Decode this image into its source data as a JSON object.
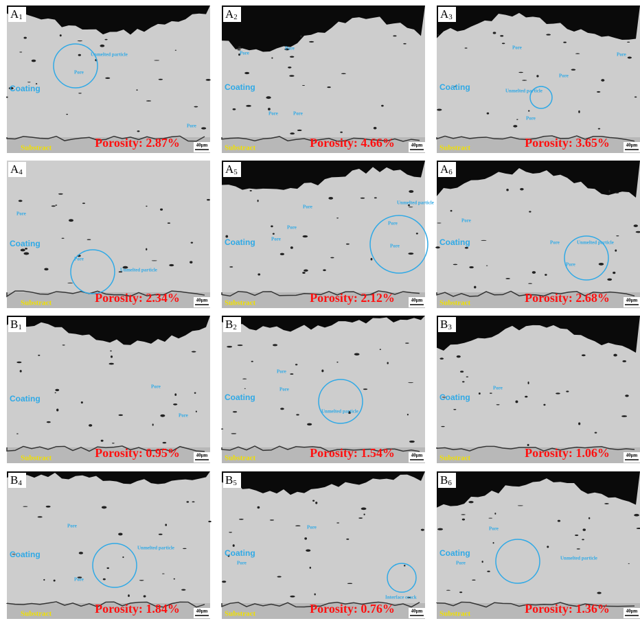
{
  "panels": [
    {
      "label": "A",
      "index": "1",
      "coating": "Coating",
      "substrate": "Substract",
      "porosity": "Porosity: 2.87%",
      "scale": "40μm",
      "annotations": [
        "Unmelted particle",
        "Pore",
        "Pore"
      ]
    },
    {
      "label": "A",
      "index": "2",
      "coating": "Coating",
      "substrate": "Substract",
      "porosity": "Porosity: 4.66%",
      "scale": "40μm",
      "annotations": [
        "Pore",
        "Pore",
        "Pore",
        "Pore"
      ]
    },
    {
      "label": "A",
      "index": "3",
      "coating": "Coating",
      "substrate": "Substract",
      "porosity": "Porosity: 3.65%",
      "scale": "40μm",
      "annotations": [
        "Pore",
        "Pore",
        "Pore",
        "Unmelted particle",
        "Pore"
      ]
    },
    {
      "label": "A",
      "index": "4",
      "coating": "Coating",
      "substrate": "Substract",
      "porosity": "Porosity: 2.34%",
      "scale": "40μm",
      "annotations": [
        "Pore",
        "Unmelted particle",
        "Pore"
      ]
    },
    {
      "label": "A",
      "index": "5",
      "coating": "Coating",
      "substrate": "Substract",
      "porosity": "Porosity: 2.12%",
      "scale": "40μm",
      "annotations": [
        "Pore",
        "Unmelted particle",
        "Pore",
        "Pore",
        "Pore",
        "Pore"
      ]
    },
    {
      "label": "A",
      "index": "6",
      "coating": "Coating",
      "substrate": "Substract",
      "porosity": "Porosity: 2.68%",
      "scale": "40μm",
      "annotations": [
        "Pore",
        "Pore",
        "Unmelted particle",
        "Pore"
      ]
    },
    {
      "label": "B",
      "index": "1",
      "coating": "Coating",
      "substrate": "Substract",
      "porosity": "Porosity: 0.95%",
      "scale": "40μm",
      "annotations": [
        "Pore",
        "Pore"
      ]
    },
    {
      "label": "B",
      "index": "2",
      "coating": "Coating",
      "substrate": "Substract",
      "porosity": "Porosity: 1.54%",
      "scale": "40μm",
      "annotations": [
        "Pore",
        "Pore",
        "Unmelted particle"
      ]
    },
    {
      "label": "B",
      "index": "3",
      "coating": "Coating",
      "substrate": "Substract",
      "porosity": "Porosity: 1.06%",
      "scale": "40μm",
      "annotations": [
        "Pore"
      ]
    },
    {
      "label": "B",
      "index": "4",
      "coating": "Coating",
      "substrate": "Substract",
      "porosity": "Porosity: 1.84%",
      "scale": "40μm",
      "annotations": [
        "Pore",
        "Unmelted particle",
        "Pore"
      ]
    },
    {
      "label": "B",
      "index": "5",
      "coating": "Coating",
      "substrate": "Substract",
      "porosity": "Porosity: 0.76%",
      "scale": "40μm",
      "annotations": [
        "Pore",
        "Pore",
        "Interface crack"
      ]
    },
    {
      "label": "B",
      "index": "6",
      "coating": "Coating",
      "substrate": "Substract",
      "porosity": "Porosity: 1.36%",
      "scale": "40μm",
      "annotations": [
        "Pore",
        "Pore",
        "Unmelted particle"
      ]
    }
  ]
}
